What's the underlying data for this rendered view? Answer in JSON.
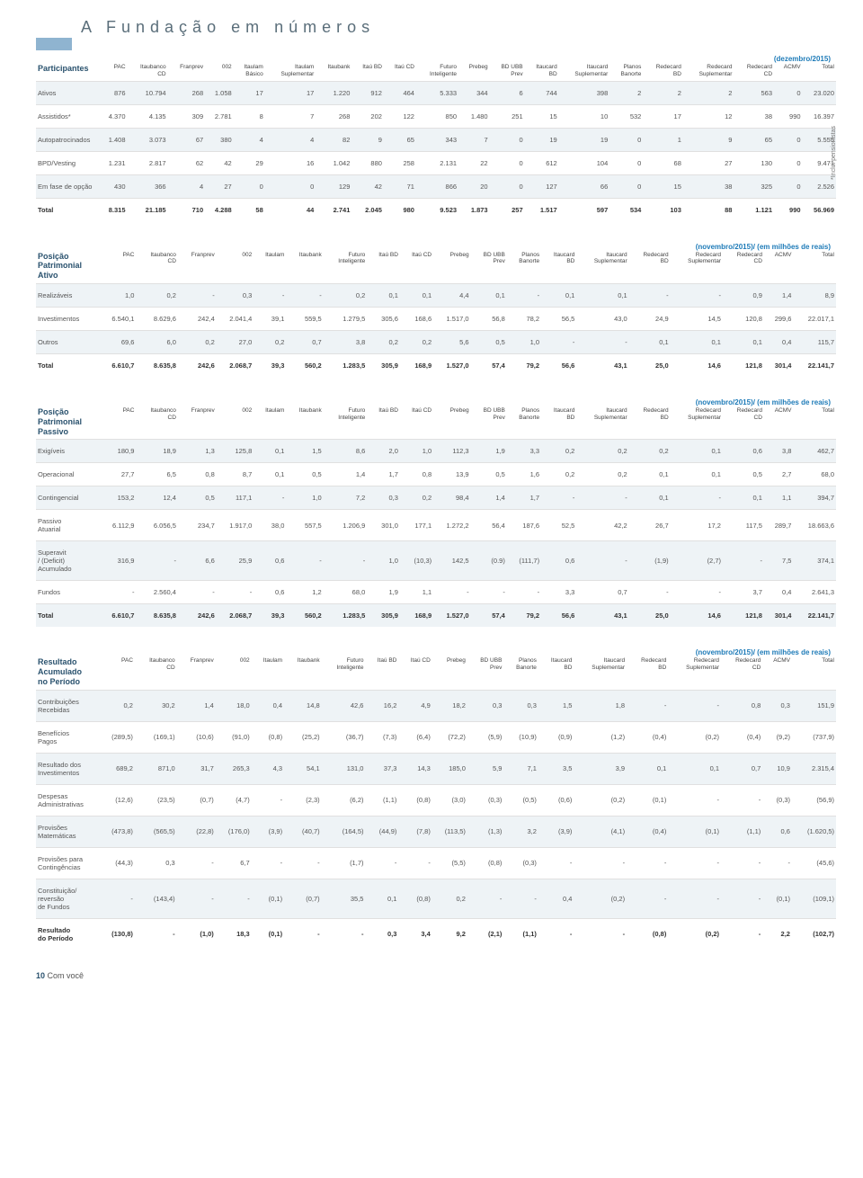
{
  "page": {
    "title": "A Fundação em números"
  },
  "sidenote": "*Inclui pensionistas",
  "footer": {
    "num": "10",
    "label": "Com você"
  },
  "sections": [
    {
      "title": "Participantes",
      "period": "(dezembro/2015)",
      "cols": [
        "PAC",
        "Itaubanco\nCD",
        "Franprev",
        "002",
        "Itaulam\nBásico",
        "Itaulam\nSuplementar",
        "Itaubank",
        "Itaú BD",
        "Itaú CD",
        "Futuro\nInteligente",
        "Prebeg",
        "BD UBB\nPrev",
        "Itaucard\nBD",
        "Itaucard\nSuplementar",
        "Planos\nBanorte",
        "Redecard\nBD",
        "Redecard\nSuplementar",
        "Redecard\nCD",
        "ACMV",
        "Total"
      ],
      "rows": [
        {
          "n": "Ativos",
          "t": 1,
          "v": [
            "876",
            "10.794",
            "268",
            "1.058",
            "17",
            "17",
            "1.220",
            "912",
            "464",
            "5.333",
            "344",
            "6",
            "744",
            "398",
            "2",
            "2",
            "2",
            "563",
            "0",
            "23.020"
          ]
        },
        {
          "n": "Assistidos*",
          "v": [
            "4.370",
            "4.135",
            "309",
            "2.781",
            "8",
            "7",
            "268",
            "202",
            "122",
            "850",
            "1.480",
            "251",
            "15",
            "10",
            "532",
            "17",
            "12",
            "38",
            "990",
            "16.397"
          ]
        },
        {
          "n": "Autopatrocinados",
          "t": 1,
          "v": [
            "1.408",
            "3.073",
            "67",
            "380",
            "4",
            "4",
            "82",
            "9",
            "65",
            "343",
            "7",
            "0",
            "19",
            "19",
            "0",
            "1",
            "9",
            "65",
            "0",
            "5.555"
          ]
        },
        {
          "n": "BPD/Vesting",
          "v": [
            "1.231",
            "2.817",
            "62",
            "42",
            "29",
            "16",
            "1.042",
            "880",
            "258",
            "2.131",
            "22",
            "0",
            "612",
            "104",
            "0",
            "68",
            "27",
            "130",
            "0",
            "9.471"
          ]
        },
        {
          "n": "Em fase de opção",
          "t": 1,
          "v": [
            "430",
            "366",
            "4",
            "27",
            "0",
            "0",
            "129",
            "42",
            "71",
            "866",
            "20",
            "0",
            "127",
            "66",
            "0",
            "15",
            "38",
            "325",
            "0",
            "2.526"
          ]
        },
        {
          "n": "Total",
          "b": 1,
          "v": [
            "8.315",
            "21.185",
            "710",
            "4.288",
            "58",
            "44",
            "2.741",
            "2.045",
            "980",
            "9.523",
            "1.873",
            "257",
            "1.517",
            "597",
            "534",
            "103",
            "88",
            "1.121",
            "990",
            "56.969"
          ]
        }
      ]
    },
    {
      "title": "Posição\nPatrimonial\nAtivo",
      "period": "(novembro/2015)/ (em milhões de reais)",
      "cols": [
        "PAC",
        "Itaubanco\nCD",
        "Franprev",
        "002",
        "Itaulam",
        "Itaubank",
        "Futuro\nInteligente",
        "Itaú BD",
        "Itaú CD",
        "Prebeg",
        "BD UBB\nPrev",
        "Planos\nBanorte",
        "Itaucard\nBD",
        "Itaucard\nSuplementar",
        "Redecard\nBD",
        "Redecard\nSuplementar",
        "Redecard\nCD",
        "ACMV",
        "Total"
      ],
      "rows": [
        {
          "n": "Realizáveis",
          "t": 1,
          "v": [
            "1,0",
            "0,2",
            "-",
            "0,3",
            "-",
            "-",
            "0,2",
            "0,1",
            "0,1",
            "4,4",
            "0,1",
            "-",
            "0,1",
            "0,1",
            "-",
            "-",
            "0,9",
            "1,4",
            "8,9"
          ]
        },
        {
          "n": "Investimentos",
          "v": [
            "6.540,1",
            "8.629,6",
            "242,4",
            "2.041,4",
            "39,1",
            "559,5",
            "1.279,5",
            "305,6",
            "168,6",
            "1.517,0",
            "56,8",
            "78,2",
            "56,5",
            "43,0",
            "24,9",
            "14,5",
            "120,8",
            "299,6",
            "22.017,1"
          ]
        },
        {
          "n": "Outros",
          "t": 1,
          "v": [
            "69,6",
            "6,0",
            "0,2",
            "27,0",
            "0,2",
            "0,7",
            "3,8",
            "0,2",
            "0,2",
            "5,6",
            "0,5",
            "1,0",
            "-",
            "-",
            "0,1",
            "0,1",
            "0,1",
            "0,4",
            "115,7"
          ]
        },
        {
          "n": "Total",
          "b": 1,
          "v": [
            "6.610,7",
            "8.635,8",
            "242,6",
            "2.068,7",
            "39,3",
            "560,2",
            "1.283,5",
            "305,9",
            "168,9",
            "1.527,0",
            "57,4",
            "79,2",
            "56,6",
            "43,1",
            "25,0",
            "14,6",
            "121,8",
            "301,4",
            "22.141,7"
          ]
        }
      ]
    },
    {
      "title": "Posição\nPatrimonial\nPassivo",
      "period": "(novembro/2015)/ (em milhões de reais)",
      "cols": [
        "PAC",
        "Itaubanco\nCD",
        "Franprev",
        "002",
        "Itaulam",
        "Itaubank",
        "Futuro\nInteligente",
        "Itaú BD",
        "Itaú CD",
        "Prebeg",
        "BD UBB\nPrev",
        "Planos\nBanorte",
        "Itaucard\nBD",
        "Itaucard\nSuplementar",
        "Redecard\nBD",
        "Redecard\nSuplementar",
        "Redecard\nCD",
        "ACMV",
        "Total"
      ],
      "rows": [
        {
          "n": "Exigíveis",
          "t": 1,
          "v": [
            "180,9",
            "18,9",
            "1,3",
            "125,8",
            "0,1",
            "1,5",
            "8,6",
            "2,0",
            "1,0",
            "112,3",
            "1,9",
            "3,3",
            "0,2",
            "0,2",
            "0,2",
            "0,1",
            "0,6",
            "3,8",
            "462,7"
          ]
        },
        {
          "n": "Operacional",
          "v": [
            "27,7",
            "6,5",
            "0,8",
            "8,7",
            "0,1",
            "0,5",
            "1,4",
            "1,7",
            "0,8",
            "13,9",
            "0,5",
            "1,6",
            "0,2",
            "0,2",
            "0,1",
            "0,1",
            "0,5",
            "2,7",
            "68,0"
          ]
        },
        {
          "n": "Contingencial",
          "t": 1,
          "v": [
            "153,2",
            "12,4",
            "0,5",
            "117,1",
            "-",
            "1,0",
            "7,2",
            "0,3",
            "0,2",
            "98,4",
            "1,4",
            "1,7",
            "-",
            "-",
            "0,1",
            "-",
            "0,1",
            "1,1",
            "394,7"
          ]
        },
        {
          "n": "Passivo\nAtuarial",
          "v": [
            "6.112,9",
            "6.056,5",
            "234,7",
            "1.917,0",
            "38,0",
            "557,5",
            "1.206,9",
            "301,0",
            "177,1",
            "1.272,2",
            "56,4",
            "187,6",
            "52,5",
            "42,2",
            "26,7",
            "17,2",
            "117,5",
            "289,7",
            "18.663,6"
          ]
        },
        {
          "n": "Superavit\n/ (Deficit)\nAcumulado",
          "t": 1,
          "v": [
            "316,9",
            "-",
            "6,6",
            "25,9",
            "0,6",
            "-",
            "-",
            "1,0",
            "(10,3)",
            "142,5",
            "(0.9)",
            "(111,7)",
            "0,6",
            "-",
            "(1,9)",
            "(2,7)",
            "-",
            "7,5",
            "374,1"
          ]
        },
        {
          "n": "Fundos",
          "v": [
            "-",
            "2.560,4",
            "-",
            "-",
            "0,6",
            "1,2",
            "68,0",
            "1,9",
            "1,1",
            "-",
            "-",
            "-",
            "3,3",
            "0,7",
            "-",
            "-",
            "3,7",
            "0,4",
            "2.641,3"
          ]
        },
        {
          "n": "Total",
          "b": 1,
          "t": 1,
          "v": [
            "6.610,7",
            "8.635,8",
            "242,6",
            "2.068,7",
            "39,3",
            "560,2",
            "1.283,5",
            "305,9",
            "168,9",
            "1.527,0",
            "57,4",
            "79,2",
            "56,6",
            "43,1",
            "25,0",
            "14,6",
            "121,8",
            "301,4",
            "22.141,7"
          ]
        }
      ]
    },
    {
      "title": "Resultado\nAcumulado\nno Período",
      "period": "(novembro/2015)/ (em milhões de reais)",
      "cols": [
        "PAC",
        "Itaubanco\nCD",
        "Franprev",
        "002",
        "Itaulam",
        "Itaubank",
        "Futuro\nInteligente",
        "Itaú BD",
        "Itaú CD",
        "Prebeg",
        "BD UBB\nPrev",
        "Planos\nBanorte",
        "Itaucard\nBD",
        "Itaucard\nSuplementar",
        "Redecard\nBD",
        "Redecard\nSuplementar",
        "Redecard\nCD",
        "ACMV",
        "Total"
      ],
      "rows": [
        {
          "n": "Contribuições\nRecebidas",
          "t": 1,
          "v": [
            "0,2",
            "30,2",
            "1,4",
            "18,0",
            "0,4",
            "14,8",
            "42,6",
            "16,2",
            "4,9",
            "18,2",
            "0,3",
            "0,3",
            "1,5",
            "1,8",
            "-",
            "-",
            "0,8",
            "0,3",
            "151,9"
          ]
        },
        {
          "n": "Benefícios\nPagos",
          "v": [
            "(289,5)",
            "(169,1)",
            "(10,6)",
            "(91,0)",
            "(0,8)",
            "(25,2)",
            "(36,7)",
            "(7,3)",
            "(6,4)",
            "(72,2)",
            "(5,9)",
            "(10,9)",
            "(0,9)",
            "(1,2)",
            "(0,4)",
            "(0,2)",
            "(0,4)",
            "(9,2)",
            "(737,9)"
          ]
        },
        {
          "n": "Resultado dos\nInvestimentos",
          "t": 1,
          "v": [
            "689,2",
            "871,0",
            "31,7",
            "265,3",
            "4,3",
            "54,1",
            "131,0",
            "37,3",
            "14,3",
            "185,0",
            "5,9",
            "7,1",
            "3,5",
            "3,9",
            "0,1",
            "0,1",
            "0,7",
            "10,9",
            "2.315,4"
          ]
        },
        {
          "n": "Despesas\nAdministrativas",
          "v": [
            "(12,6)",
            "(23,5)",
            "(0,7)",
            "(4,7)",
            "-",
            "(2,3)",
            "(6,2)",
            "(1,1)",
            "(0,8)",
            "(3,0)",
            "(0,3)",
            "(0,5)",
            "(0,6)",
            "(0,2)",
            "(0,1)",
            "-",
            "-",
            "(0,3)",
            "(56,9)"
          ]
        },
        {
          "n": "Provisões\nMatemáticas",
          "t": 1,
          "v": [
            "(473,8)",
            "(565,5)",
            "(22,8)",
            "(176,0)",
            "(3,9)",
            "(40,7)",
            "(164,5)",
            "(44,9)",
            "(7,8)",
            "(113,5)",
            "(1,3)",
            "3,2",
            "(3,9)",
            "(4,1)",
            "(0,4)",
            "(0,1)",
            "(1,1)",
            "0,6",
            "(1.620,5)"
          ]
        },
        {
          "n": "Provisões para\nContingências",
          "v": [
            "(44,3)",
            "0,3",
            "-",
            "6,7",
            "-",
            "-",
            "(1,7)",
            "-",
            "-",
            "(5,5)",
            "(0,8)",
            "(0,3)",
            "-",
            "-",
            "-",
            "-",
            "-",
            "-",
            "(45,6)"
          ]
        },
        {
          "n": "Constituição/\nreversão\nde Fundos",
          "t": 1,
          "v": [
            "-",
            "(143,4)",
            "-",
            "-",
            "(0,1)",
            "(0,7)",
            "35,5",
            "0,1",
            "(0,8)",
            "0,2",
            "-",
            "-",
            "0,4",
            "(0,2)",
            "-",
            "-",
            "-",
            "(0,1)",
            "(109,1)"
          ]
        },
        {
          "n": "Resultado\ndo Período",
          "b": 1,
          "v": [
            "(130,8)",
            "-",
            "(1,0)",
            "18,3",
            "(0,1)",
            "-",
            "-",
            "0,3",
            "3,4",
            "9,2",
            "(2,1)",
            "(1,1)",
            "-",
            "-",
            "(0,8)",
            "(0,2)",
            "-",
            "2,2",
            "(102,7)"
          ]
        }
      ]
    }
  ]
}
